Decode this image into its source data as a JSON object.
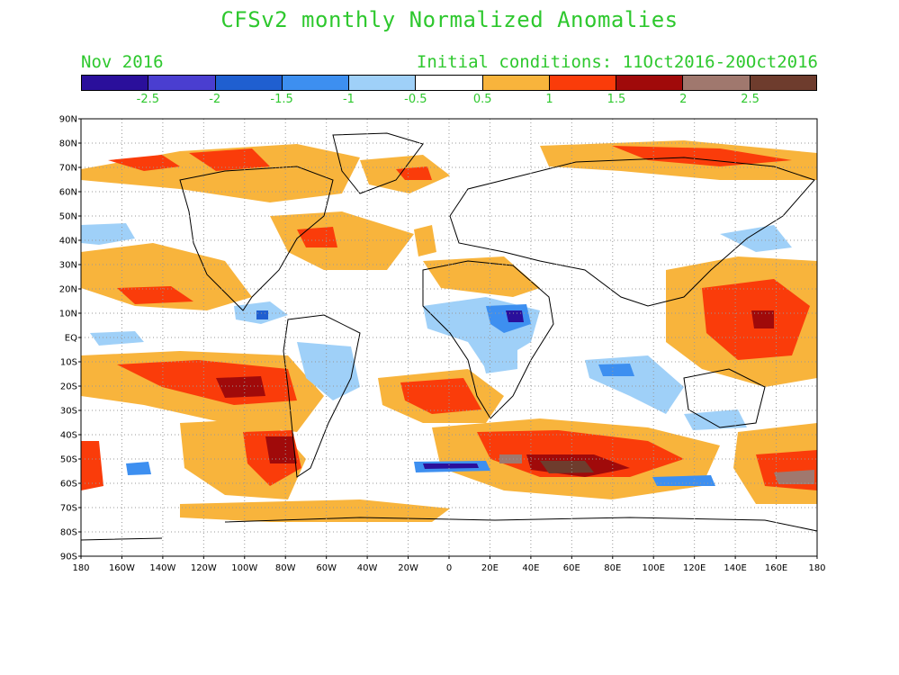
{
  "title": "CFSv2 monthly Normalized Anomalies",
  "month_label": "Nov 2016",
  "initial_conditions": "Initial conditions: 11Oct2016-20Oct2016",
  "colors": {
    "text_green": "#2ec82e"
  },
  "colorbar": {
    "swatches": [
      "#2a0f9b",
      "#4a3ed0",
      "#1f5fd0",
      "#3d8ff0",
      "#9fd0f8",
      "#ffffff",
      "#f8b43c",
      "#fa3c0a",
      "#a00a0a",
      "#a0786e",
      "#6e3c2d"
    ],
    "labels": [
      "-2.5",
      "-2",
      "-1.5",
      "-1",
      "-0.5",
      "0.5",
      "1",
      "1.5",
      "2",
      "2.5"
    ]
  },
  "map": {
    "lat_labels": [
      "90N",
      "80N",
      "70N",
      "60N",
      "50N",
      "40N",
      "30N",
      "20N",
      "10N",
      "EQ",
      "10S",
      "20S",
      "30S",
      "40S",
      "50S",
      "60S",
      "70S",
      "80S",
      "90S"
    ],
    "lon_labels": [
      "180",
      "160W",
      "140W",
      "120W",
      "100W",
      "80W",
      "60W",
      "40W",
      "20W",
      "0",
      "20E",
      "40E",
      "60E",
      "80E",
      "100E",
      "120E",
      "140E",
      "160E",
      "180"
    ]
  }
}
